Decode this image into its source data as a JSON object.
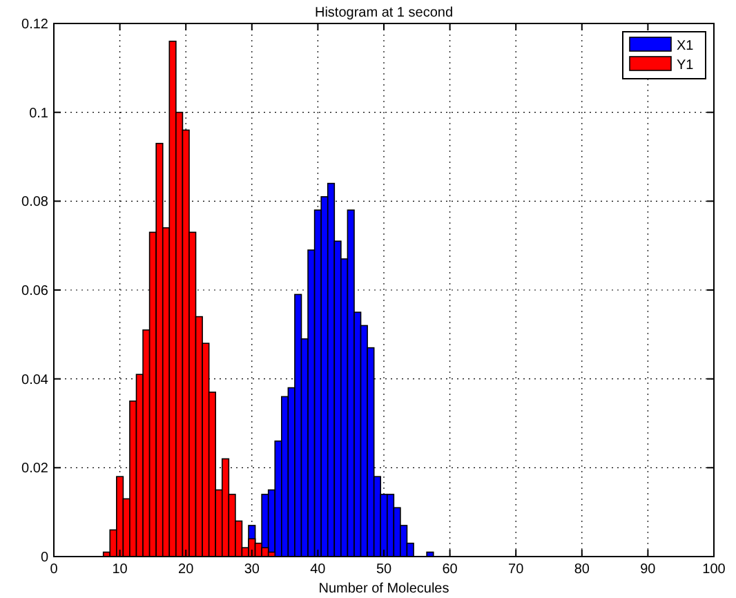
{
  "chart_data": {
    "type": "histogram",
    "title": "Histogram at 1 second",
    "xlabel": "Number of Molecules",
    "bins": [
      7.5,
      8.5,
      9.5,
      10.5,
      11.5,
      12.5,
      13.5,
      14.5,
      15.5,
      16.5,
      17.5,
      18.5,
      19.5,
      20.5,
      21.5,
      22.5,
      23.5,
      24.5,
      25.5,
      26.5,
      27.5,
      28.5,
      29.5,
      30.5,
      31.5,
      32.5,
      33.5,
      34.5,
      35.5,
      36.5,
      37.5,
      38.5,
      39.5,
      40.5,
      41.5,
      42.5,
      43.5,
      44.5,
      45.5,
      46.5,
      47.5,
      48.5,
      49.5,
      50.5,
      51.5,
      52.5,
      53.5,
      54.5,
      55.5,
      56.5,
      57.5
    ],
    "series": [
      {
        "name": "X1",
        "color": "#0000ff",
        "values": [
          0,
          0,
          0,
          0,
          0,
          0,
          0,
          0,
          0,
          0,
          0,
          0,
          0,
          0,
          0,
          0,
          0,
          0,
          0,
          0,
          0,
          0,
          0.007,
          0,
          0.014,
          0.015,
          0.026,
          0.036,
          0.038,
          0.059,
          0.049,
          0.069,
          0.078,
          0.081,
          0.084,
          0.071,
          0.067,
          0.078,
          0.055,
          0.052,
          0.047,
          0.018,
          0.014,
          0.014,
          0.011,
          0.007,
          0.003,
          0,
          0,
          0.001
        ]
      },
      {
        "name": "Y1",
        "color": "#ff0000",
        "values": [
          0.001,
          0.006,
          0.018,
          0.013,
          0.035,
          0.041,
          0.051,
          0.073,
          0.093,
          0.074,
          0.116,
          0.1,
          0.096,
          0.073,
          0.054,
          0.048,
          0.037,
          0.015,
          0.022,
          0.014,
          0.008,
          0.002,
          0.004,
          0.003,
          0.002,
          0.001,
          0,
          0,
          0,
          0,
          0,
          0,
          0,
          0,
          0,
          0,
          0,
          0,
          0,
          0,
          0,
          0,
          0,
          0,
          0,
          0,
          0,
          0,
          0,
          0
        ]
      }
    ],
    "xlim": [
      0,
      100
    ],
    "xticks": [
      0,
      10,
      20,
      30,
      40,
      50,
      60,
      70,
      80,
      90,
      100
    ],
    "ylim": [
      0,
      0.12
    ],
    "yticks": [
      0,
      0.02,
      0.04,
      0.06,
      0.08,
      0.1,
      0.12
    ],
    "grid": true,
    "legend": "top right"
  }
}
